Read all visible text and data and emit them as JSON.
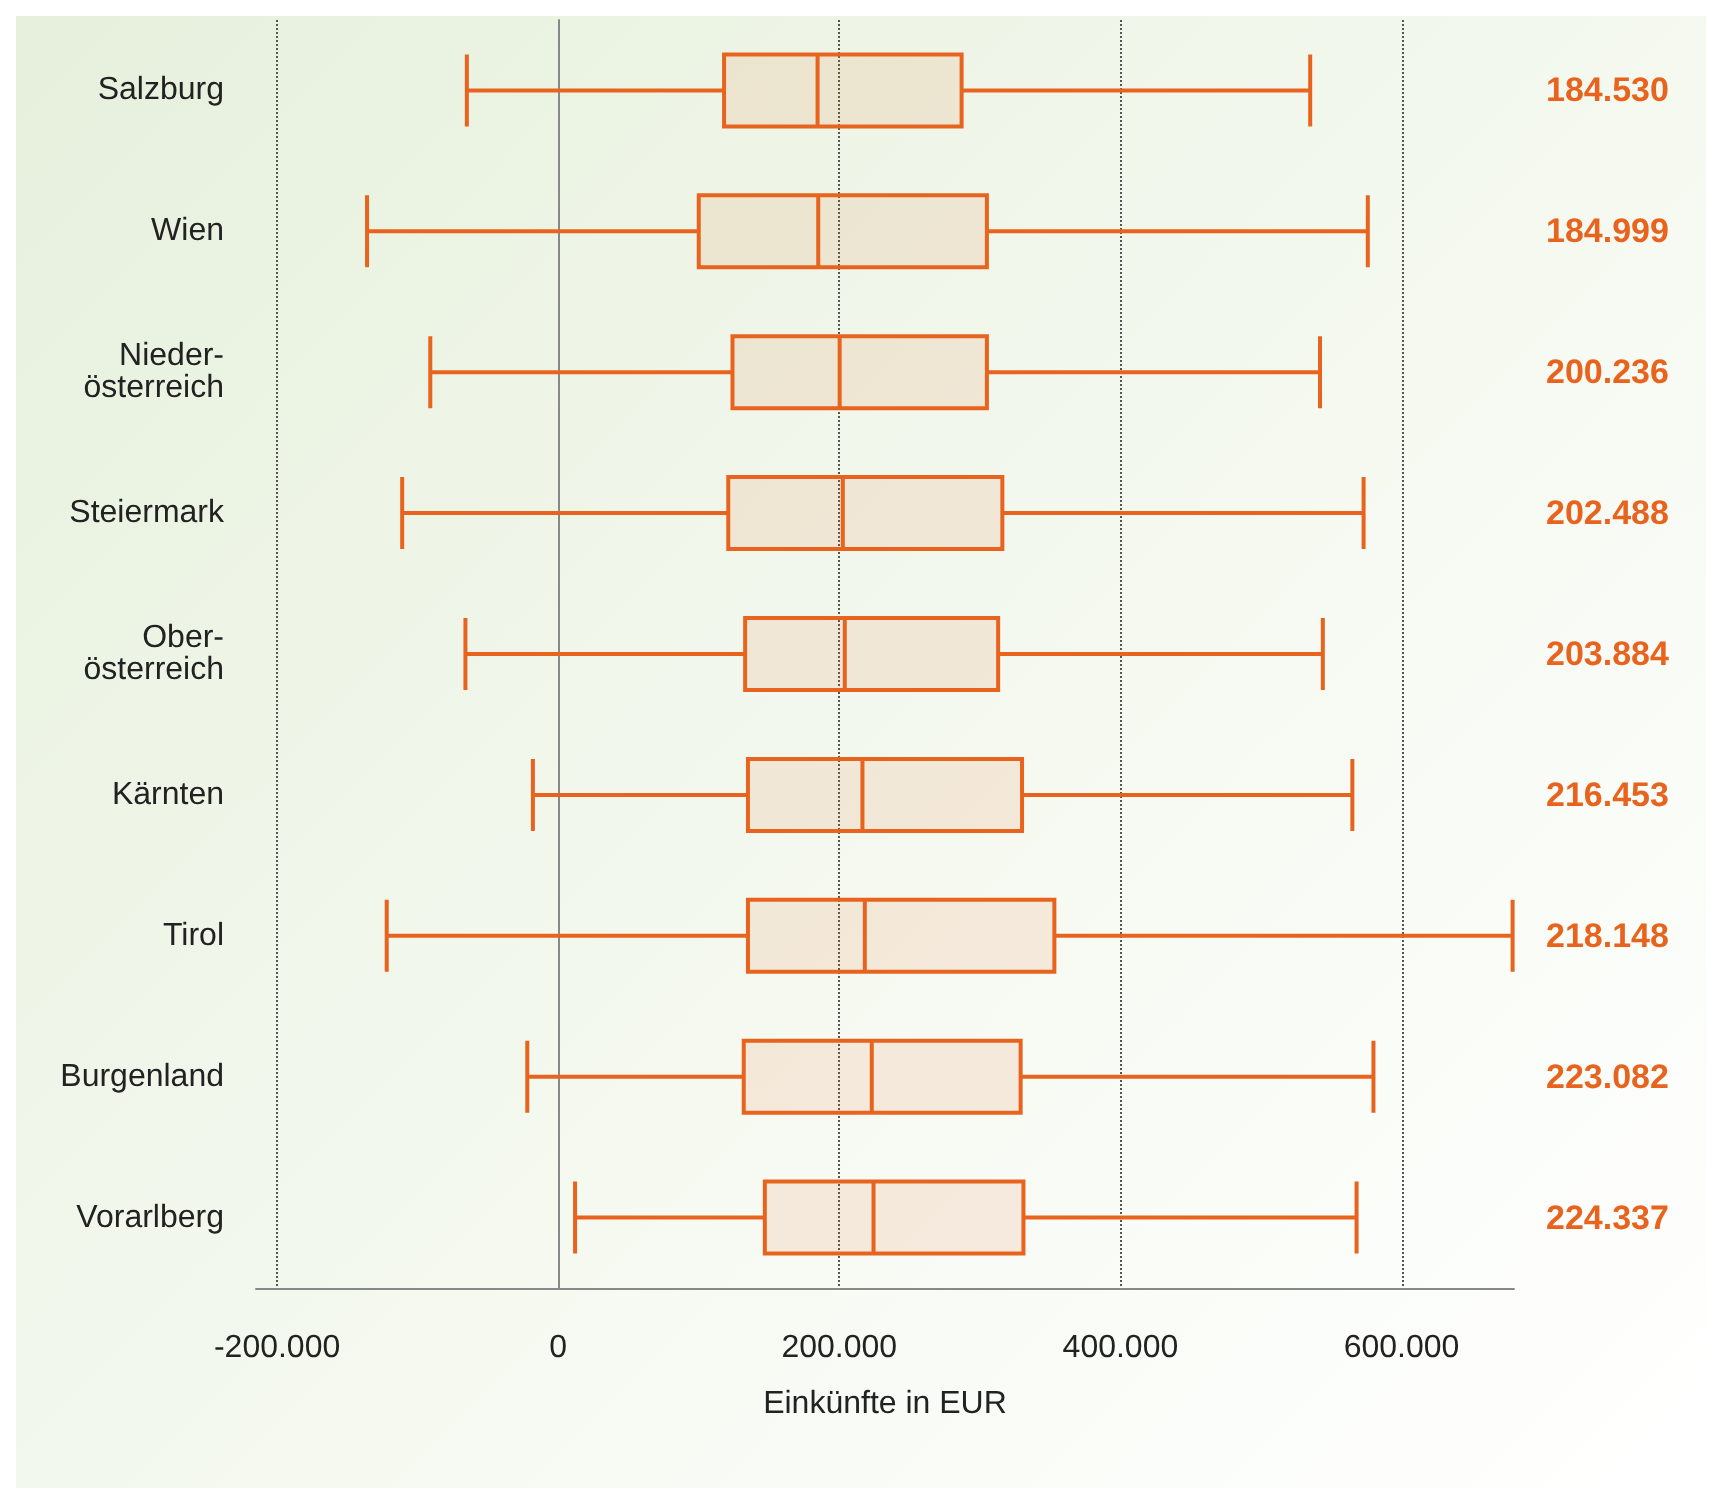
{
  "chart_data": {
    "type": "box",
    "orientation": "horizontal",
    "xlabel": "Einkünfte in EUR",
    "categories": [
      "Salzburg",
      "Wien",
      "Nieder-\nösterreich",
      "Steiermark",
      "Ober-\nösterreich",
      "Kärnten",
      "Tirol",
      "Burgenland",
      "Vorarlberg"
    ],
    "color": "#e8641e",
    "grid": "x",
    "value_labels": [
      "184.530",
      "184.999",
      "200.236",
      "202.488",
      "203.884",
      "216.453",
      "218.148",
      "223.082",
      "224.337"
    ],
    "boxes": [
      {
        "low": -65000,
        "q1": 118000,
        "median": 184530,
        "q3": 287000,
        "high": 535000
      },
      {
        "low": -136000,
        "q1": 100000,
        "median": 184999,
        "q3": 305000,
        "high": 576000
      },
      {
        "low": -91000,
        "q1": 124000,
        "median": 200236,
        "q3": 305000,
        "high": 542000
      },
      {
        "low": -111000,
        "q1": 121000,
        "median": 202488,
        "q3": 316000,
        "high": 573000
      },
      {
        "low": -66000,
        "q1": 133000,
        "median": 203884,
        "q3": 313000,
        "high": 544000
      },
      {
        "low": -18000,
        "q1": 135000,
        "median": 216453,
        "q3": 330000,
        "high": 565000
      },
      {
        "low": -122000,
        "q1": 135000,
        "median": 218148,
        "q3": 353000,
        "high": 679000
      },
      {
        "low": -22000,
        "q1": 132000,
        "median": 223082,
        "q3": 329000,
        "high": 580000
      },
      {
        "low": 12000,
        "q1": 147000,
        "median": 224337,
        "q3": 331000,
        "high": 568000
      }
    ],
    "xlim": [
      -215000,
      680000
    ],
    "xticks": [
      {
        "value": -200000,
        "label": "-200.000"
      },
      {
        "value": 0,
        "label": "0"
      },
      {
        "value": 200000,
        "label": "200.000"
      },
      {
        "value": 400000,
        "label": "400.000"
      },
      {
        "value": 600000,
        "label": "600.000"
      }
    ]
  }
}
